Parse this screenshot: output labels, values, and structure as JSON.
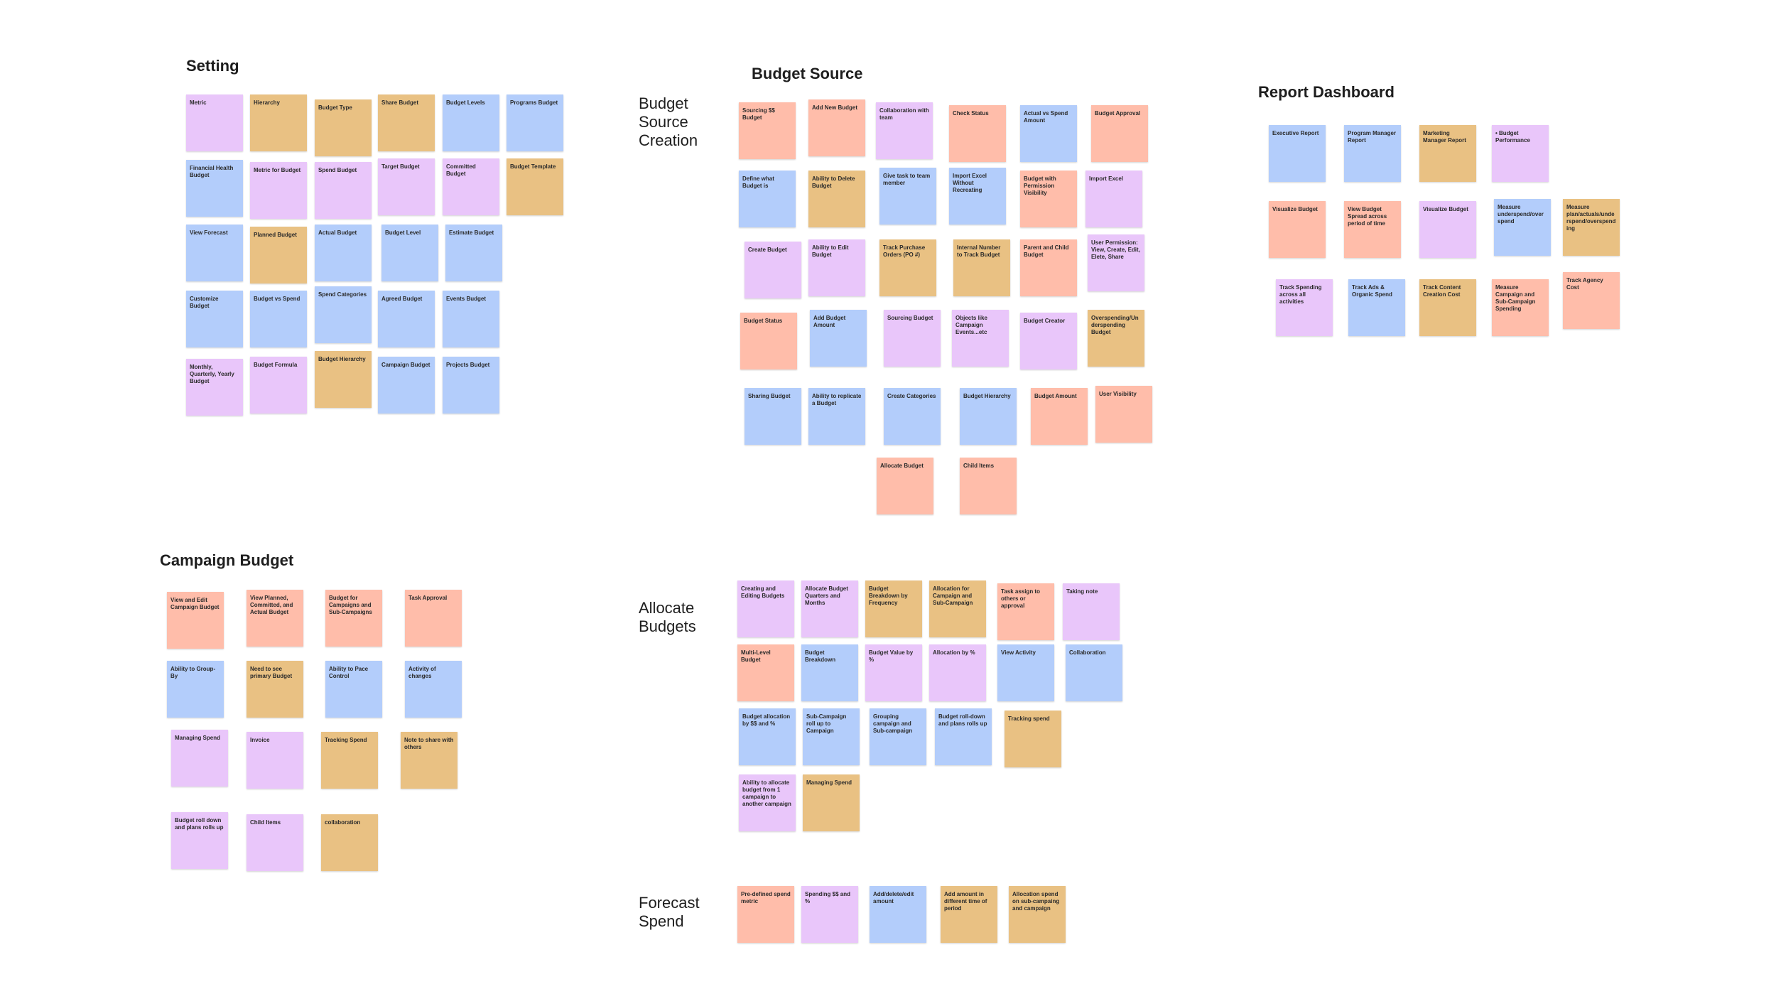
{
  "colors": {
    "purple": "#e9c6fa",
    "tan": "#e9c183",
    "blue": "#b3cdfb",
    "salmon": "#ffbdaa"
  },
  "setting": {
    "title": "Setting",
    "notes": [
      {
        "text": "Metric",
        "color": "purple"
      },
      {
        "text": "Hierarchy",
        "color": "tan"
      },
      {
        "text": "Budget Type",
        "color": "tan"
      },
      {
        "text": "Share Budget",
        "color": "tan"
      },
      {
        "text": "Budget Levels",
        "color": "blue"
      },
      {
        "text": "Programs Budget",
        "color": "blue"
      },
      {
        "text": "Financial Health Budget",
        "color": "blue"
      },
      {
        "text": "Metric for Budget",
        "color": "purple"
      },
      {
        "text": "Spend Budget",
        "color": "purple"
      },
      {
        "text": "Target Budget",
        "color": "purple"
      },
      {
        "text": "Committed Budget",
        "color": "purple"
      },
      {
        "text": "Budget Template",
        "color": "tan"
      },
      {
        "text": "View Forecast",
        "color": "blue"
      },
      {
        "text": "Planned Budget",
        "color": "tan"
      },
      {
        "text": "Actual Budget",
        "color": "blue"
      },
      {
        "text": "Budget Level",
        "color": "blue"
      },
      {
        "text": "Estimate Budget",
        "color": "blue"
      },
      {
        "text": "Customize Budget",
        "color": "blue"
      },
      {
        "text": "Budget vs Spend",
        "color": "blue"
      },
      {
        "text": "Spend Categories",
        "color": "blue"
      },
      {
        "text": "Agreed Budget",
        "color": "blue"
      },
      {
        "text": "Events Budget",
        "color": "blue"
      },
      {
        "text": "Monthly, Quarterly, Yearly Budget",
        "color": "purple"
      },
      {
        "text": "Budget Formula",
        "color": "purple"
      },
      {
        "text": "Budget Hierarchy",
        "color": "tan"
      },
      {
        "text": "Campaign Budget",
        "color": "blue"
      },
      {
        "text": "Projects Budget",
        "color": "blue"
      }
    ]
  },
  "budget_source": {
    "title": "Budget Source",
    "label": "Budget Source Creation",
    "notes": [
      {
        "text": "Sourcing $$ Budget",
        "color": "salmon"
      },
      {
        "text": "Add New Budget",
        "color": "salmon"
      },
      {
        "text": "Collaboration with team",
        "color": "purple"
      },
      {
        "text": "Check Status",
        "color": "salmon"
      },
      {
        "text": "Actual vs Spend Amount",
        "color": "blue"
      },
      {
        "text": "Budget Approval",
        "color": "salmon"
      },
      {
        "text": "Define what Budget is",
        "color": "blue"
      },
      {
        "text": "Ability to Delete Budget",
        "color": "tan"
      },
      {
        "text": "Give task to team member",
        "color": "blue"
      },
      {
        "text": "Import Excel Without Recreating",
        "color": "blue"
      },
      {
        "text": "Budget with Permission Visibility",
        "color": "salmon"
      },
      {
        "text": "Import Excel",
        "color": "purple"
      },
      {
        "text": "Create Budget",
        "color": "purple"
      },
      {
        "text": "Ability to Edit Budget",
        "color": "purple"
      },
      {
        "text": "Track Purchase Orders (PO #)",
        "color": "tan"
      },
      {
        "text": "Internal Number to Track Budget",
        "color": "tan"
      },
      {
        "text": "Parent and Child Budget",
        "color": "salmon"
      },
      {
        "text": "User Permission: View, Create, Edit, Elete, Share",
        "color": "purple"
      },
      {
        "text": "Budget Status",
        "color": "salmon"
      },
      {
        "text": "Add Budget Amount",
        "color": "blue"
      },
      {
        "text": "Sourcing Budget",
        "color": "purple"
      },
      {
        "text": "Objects like Campaign Events...etc",
        "color": "purple"
      },
      {
        "text": "Budget Creator",
        "color": "purple"
      },
      {
        "text": "Overspending/Underspending Budget",
        "color": "tan"
      },
      {
        "text": "Sharing Budget",
        "color": "blue"
      },
      {
        "text": "Ability to replicate a Budget",
        "color": "blue"
      },
      {
        "text": "Create Categories",
        "color": "blue"
      },
      {
        "text": "Budget Hierarchy",
        "color": "blue"
      },
      {
        "text": "Budget Amount",
        "color": "salmon"
      },
      {
        "text": "User Visibility",
        "color": "salmon"
      },
      {
        "text": "Allocate Budget",
        "color": "salmon"
      },
      {
        "text": "Child Items",
        "color": "salmon"
      }
    ]
  },
  "report_dashboard": {
    "title": "Report Dashboard",
    "notes": [
      {
        "text": "Executive Report",
        "color": "blue"
      },
      {
        "text": "Program Manager Report",
        "color": "blue"
      },
      {
        "text": "Marketing Manager Report",
        "color": "tan"
      },
      {
        "text": "• Budget Performance",
        "color": "purple"
      },
      {
        "text": "Visualize Budget",
        "color": "salmon"
      },
      {
        "text": "View Budget Spread across period of time",
        "color": "salmon"
      },
      {
        "text": "Visualize Budget",
        "color": "purple"
      },
      {
        "text": "Measure underspend/over spend",
        "color": "blue"
      },
      {
        "text": "Measure plan/actuals/underspend/overspending",
        "color": "tan"
      },
      {
        "text": "Track Spending across all activities",
        "color": "purple"
      },
      {
        "text": "Track Ads & Organic Spend",
        "color": "blue"
      },
      {
        "text": "Track Content Creation Cost",
        "color": "tan"
      },
      {
        "text": "Measure Campaign and Sub-Campaign Spending",
        "color": "salmon"
      },
      {
        "text": "Track Agency Cost",
        "color": "salmon"
      }
    ]
  },
  "campaign_budget": {
    "title": "Campaign Budget",
    "notes": [
      {
        "text": "View and Edit Campaign Budget",
        "color": "salmon"
      },
      {
        "text": "View Planned, Committed, and Actual Budget",
        "color": "salmon"
      },
      {
        "text": "Budget for Campaigns and Sub-Campaigns",
        "color": "salmon"
      },
      {
        "text": "Task Approval",
        "color": "salmon"
      },
      {
        "text": "Ability to Group-By",
        "color": "blue"
      },
      {
        "text": "Need to see primary Budget",
        "color": "tan"
      },
      {
        "text": "Ability to Pace Control",
        "color": "blue"
      },
      {
        "text": "Activity of changes",
        "color": "blue"
      },
      {
        "text": "Managing Spend",
        "color": "purple"
      },
      {
        "text": "Invoice",
        "color": "purple"
      },
      {
        "text": "Tracking Spend",
        "color": "tan"
      },
      {
        "text": "Note to share with others",
        "color": "tan"
      },
      {
        "text": "Budget roll down and plans rolls up",
        "color": "purple"
      },
      {
        "text": "Child Items",
        "color": "purple"
      },
      {
        "text": "collaboration",
        "color": "tan"
      }
    ]
  },
  "allocate_budgets": {
    "label": "Allocate Budgets",
    "notes": [
      {
        "text": "Creating and Editing Budgets",
        "color": "purple"
      },
      {
        "text": "Allocate Budget Quarters and Months",
        "color": "purple"
      },
      {
        "text": "Budget Breakdown by Frequency",
        "color": "tan"
      },
      {
        "text": "Allocation for Campaign and Sub-Campaign",
        "color": "tan"
      },
      {
        "text": "Task assign to others or approval",
        "color": "salmon"
      },
      {
        "text": "Taking note",
        "color": "purple"
      },
      {
        "text": "Multi-Level Budget",
        "color": "salmon"
      },
      {
        "text": "Budget Breakdown",
        "color": "blue"
      },
      {
        "text": "Budget Value by %",
        "color": "purple"
      },
      {
        "text": "Allocation by %",
        "color": "purple"
      },
      {
        "text": "View Activity",
        "color": "blue"
      },
      {
        "text": "Collaboration",
        "color": "blue"
      },
      {
        "text": "Budget allocation by $$ and %",
        "color": "blue"
      },
      {
        "text": "Sub-Campaign roll up to Campaign",
        "color": "blue"
      },
      {
        "text": "Grouping campaign and Sub-campaign",
        "color": "blue"
      },
      {
        "text": "Budget roll-down and plans rolls up",
        "color": "blue"
      },
      {
        "text": "Tracking spend",
        "color": "tan"
      },
      {
        "text": "Ability to allocate budget from 1 campaign to another campaign",
        "color": "purple"
      },
      {
        "text": "Managing Spend",
        "color": "tan"
      }
    ]
  },
  "forecast_spend": {
    "label": "Forecast Spend",
    "notes": [
      {
        "text": "Pre-defined spend metric",
        "color": "salmon"
      },
      {
        "text": "Spending $$ and %",
        "color": "purple"
      },
      {
        "text": "Add/delete/edit amount",
        "color": "blue"
      },
      {
        "text": "Add amount in different time of period",
        "color": "tan"
      },
      {
        "text": "Allocation spend on sub-campaing and campaign",
        "color": "tan"
      }
    ]
  }
}
